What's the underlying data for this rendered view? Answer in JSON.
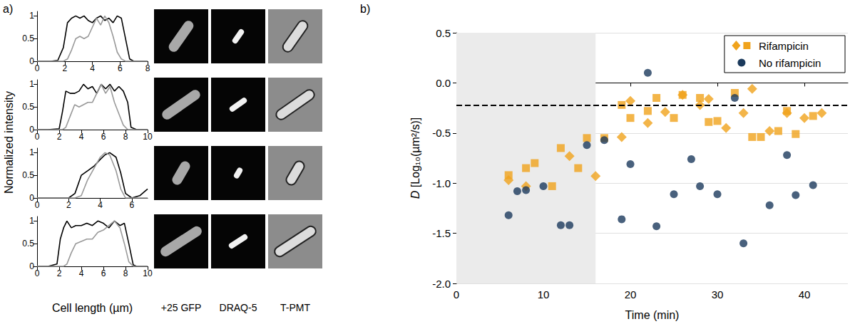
{
  "panels": {
    "a": {
      "label": "a)",
      "xlabel": "Cell length (µm)",
      "ylabel": "Normalized intensity",
      "image_columns": [
        "+25 GFP",
        "DRAQ-5",
        "T-PMT"
      ]
    },
    "b": {
      "label": "b)"
    }
  },
  "chart_data": [
    {
      "type": "line",
      "xlim": [
        0,
        8
      ],
      "xticks": [
        0,
        2,
        4,
        6,
        8
      ],
      "ylim": [
        0,
        1.1
      ],
      "yticks": [
        0,
        0.5,
        1
      ],
      "x": [
        0,
        0.5,
        1,
        1.5,
        1.9,
        2.2,
        2.5,
        2.8,
        3.1,
        3.4,
        3.7,
        4.0,
        4.3,
        4.6,
        4.9,
        5.2,
        5.5,
        5.8,
        6.1,
        6.4,
        6.7,
        7.0,
        7.5,
        8
      ],
      "series": [
        {
          "color": "#000000",
          "values": [
            0,
            0,
            0,
            0.02,
            0.3,
            0.85,
            0.95,
            1.0,
            0.95,
            1.0,
            0.9,
            0.85,
            0.95,
            1.0,
            0.9,
            0.95,
            0.85,
            1.0,
            0.95,
            0.5,
            0.05,
            0,
            0,
            0
          ]
        },
        {
          "color": "#999999",
          "values": [
            0,
            0,
            0,
            0,
            0,
            0.05,
            0.25,
            0.5,
            0.55,
            0.5,
            0.55,
            0.75,
            0.95,
            0.8,
            1.0,
            0.85,
            0.55,
            0.2,
            0.05,
            0,
            0,
            0,
            0,
            0
          ]
        }
      ]
    },
    {
      "type": "line",
      "xlim": [
        0,
        10
      ],
      "xticks": [
        0,
        2,
        4,
        6,
        8,
        10
      ],
      "ylim": [
        0,
        1.1
      ],
      "yticks": [
        0,
        0.5,
        1
      ],
      "x": [
        0,
        1,
        2,
        2.3,
        2.6,
        3,
        3.4,
        3.8,
        4.2,
        4.6,
        5,
        5.4,
        5.8,
        6.2,
        6.6,
        7,
        7.4,
        7.8,
        8.2,
        8.5,
        9,
        10
      ],
      "series": [
        {
          "color": "#000000",
          "values": [
            0,
            0,
            0.02,
            0.4,
            0.85,
            0.8,
            0.8,
            0.85,
            1.0,
            0.9,
            0.95,
            0.8,
            1.0,
            0.9,
            1.0,
            0.85,
            0.95,
            0.85,
            0.6,
            0.05,
            0,
            0
          ]
        },
        {
          "color": "#999999",
          "values": [
            0,
            0,
            0,
            0,
            0.05,
            0.3,
            0.55,
            0.5,
            0.55,
            0.6,
            0.6,
            0.8,
            1.0,
            0.8,
            0.95,
            0.6,
            0.35,
            0.1,
            0,
            0,
            0,
            0
          ]
        }
      ]
    },
    {
      "type": "line",
      "xlim": [
        0,
        7
      ],
      "xticks": [
        0,
        2,
        4,
        6
      ],
      "ylim": [
        0,
        1.1
      ],
      "yticks": [
        0,
        0.5,
        1
      ],
      "x": [
        0,
        1,
        2,
        2.4,
        2.8,
        3.2,
        3.6,
        4.0,
        4.3,
        4.6,
        5.0,
        5.3,
        5.6,
        6.0,
        6.5,
        7
      ],
      "series": [
        {
          "color": "#000000",
          "values": [
            0,
            0,
            0,
            0.1,
            0.5,
            0.6,
            0.7,
            0.85,
            0.95,
            1.0,
            0.9,
            0.55,
            0.1,
            0,
            0.05,
            0.2
          ]
        },
        {
          "color": "#999999",
          "values": [
            0,
            0,
            0,
            0,
            0.05,
            0.4,
            0.65,
            0.9,
            1.0,
            0.95,
            0.6,
            0.2,
            0,
            0,
            0,
            0
          ]
        }
      ]
    },
    {
      "type": "line",
      "xlim": [
        0,
        10
      ],
      "xticks": [
        0,
        2,
        4,
        6,
        8,
        10
      ],
      "ylim": [
        0,
        1.1
      ],
      "yticks": [
        0,
        0.5,
        1
      ],
      "x": [
        0,
        1,
        1.8,
        2.1,
        2.4,
        2.7,
        3.1,
        3.5,
        4,
        4.5,
        5,
        5.5,
        6,
        6.5,
        7,
        7.5,
        7.9,
        8.3,
        8.7,
        9,
        10
      ],
      "series": [
        {
          "color": "#000000",
          "values": [
            0,
            0,
            0.05,
            0.6,
            0.85,
            1.0,
            0.85,
            0.9,
            0.9,
            0.95,
            0.9,
            1.0,
            0.95,
            0.85,
            1.0,
            0.9,
            0.95,
            0.5,
            0.03,
            0,
            0
          ]
        },
        {
          "color": "#999999",
          "values": [
            0,
            0,
            0,
            0,
            0,
            0.05,
            0.3,
            0.5,
            0.55,
            0.6,
            0.6,
            0.75,
            0.8,
            0.9,
            1.0,
            0.85,
            0.5,
            0.1,
            0,
            0,
            0
          ]
        }
      ]
    },
    {
      "type": "scatter",
      "xlabel": "Time (min)",
      "ylabel": "D [Log₁₀(µm²/s)]",
      "xlim": [
        0,
        45
      ],
      "xticks": [
        0,
        10,
        20,
        30,
        40
      ],
      "ylim": [
        -2,
        0.5
      ],
      "yticks": [
        {
          "value": -2,
          "label": "-2.0"
        },
        -1.5,
        {
          "value": -1,
          "label": "-1.0"
        },
        -0.5,
        {
          "value": 0,
          "label": "0.0"
        },
        0.5
      ],
      "grid": true,
      "legend": "upper right",
      "shaded_x": [
        0,
        16
      ],
      "reference_y": -0.22,
      "series": [
        {
          "name": "Rifampicin",
          "color": "#f0a31c",
          "marker": "diamond",
          "x": [
            6,
            8,
            13,
            16,
            19,
            20,
            22,
            24,
            26,
            28,
            29,
            31,
            33,
            34,
            36,
            38,
            40,
            42
          ],
          "values": [
            -0.97,
            -1.03,
            -0.73,
            -0.93,
            -0.54,
            -0.18,
            -0.4,
            -0.29,
            -0.12,
            -0.22,
            -0.16,
            -0.45,
            -0.3,
            -0.06,
            -0.48,
            -0.3,
            -0.35,
            -0.3
          ]
        },
        {
          "name": "Rifampicin",
          "color": "#f0a31c",
          "marker": "square",
          "x": [
            6,
            8,
            9,
            11,
            12,
            14,
            15,
            17,
            19,
            20,
            22,
            23,
            25,
            26,
            28,
            29,
            30,
            32,
            34,
            35,
            37,
            38,
            39,
            41
          ],
          "values": [
            -0.92,
            -0.85,
            -0.8,
            -1.03,
            -0.65,
            -0.85,
            -0.55,
            -0.55,
            -0.22,
            -0.35,
            -0.28,
            -0.15,
            -0.35,
            -0.12,
            -0.15,
            -0.39,
            -0.38,
            -0.1,
            -0.54,
            -0.54,
            -0.48,
            -0.28,
            -0.51,
            -0.33
          ]
        },
        {
          "name": "No rifampicin",
          "color": "#1b3a5c",
          "marker": "circle",
          "x": [
            6,
            7,
            8,
            10,
            12,
            13,
            15,
            17,
            19,
            20,
            22,
            23,
            25,
            27,
            28,
            30,
            32,
            33,
            36,
            38,
            39,
            41
          ],
          "values": [
            -1.32,
            -1.08,
            -1.07,
            -1.03,
            -1.42,
            -1.42,
            -0.62,
            -0.57,
            -1.36,
            -0.81,
            0.1,
            -1.43,
            -1.11,
            -0.76,
            -1.03,
            -1.11,
            -0.15,
            -1.6,
            -1.22,
            -0.72,
            -1.12,
            -1.02
          ]
        }
      ]
    }
  ]
}
